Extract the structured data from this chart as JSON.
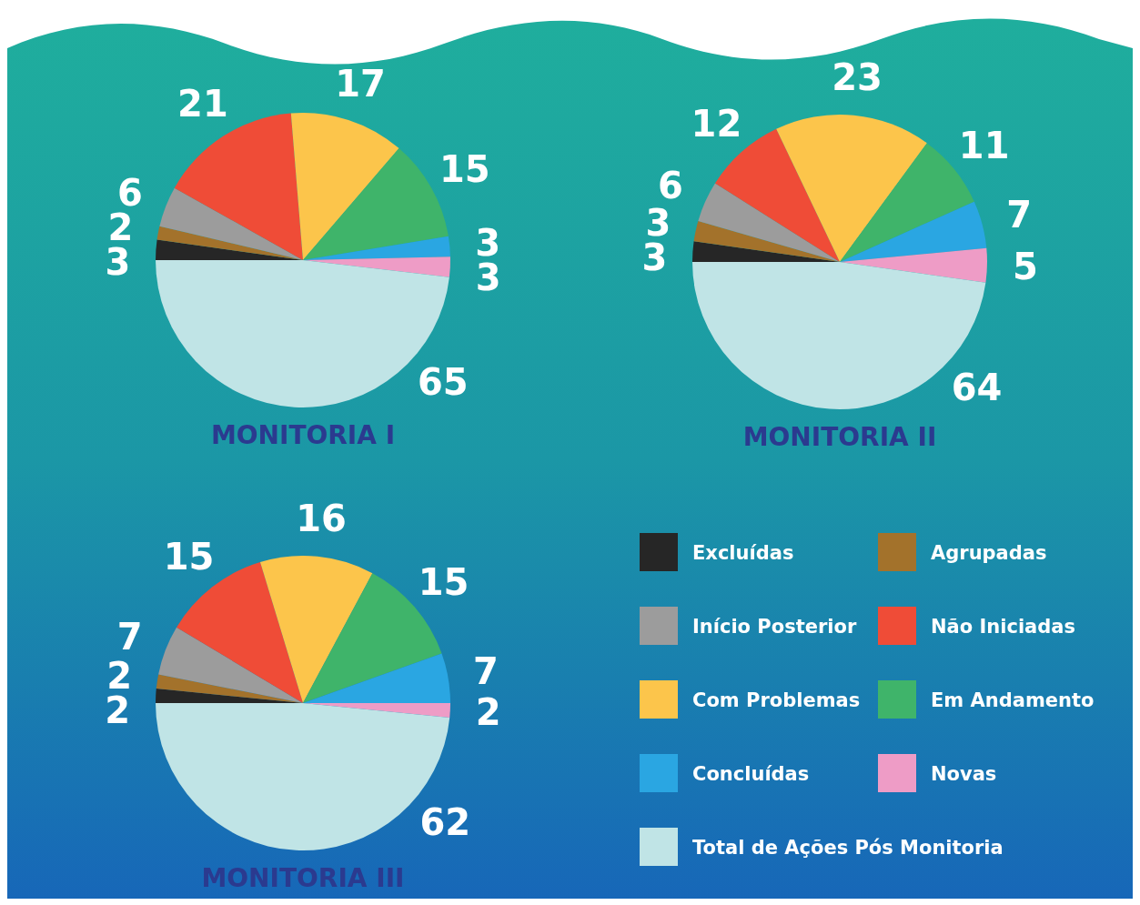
{
  "chart_data": [
    {
      "type": "pie",
      "title": "MONITORIA I",
      "categories": [
        null,
        null,
        null,
        null,
        null,
        null,
        null,
        null,
        null
      ],
      "values": [
        3,
        2,
        6,
        21,
        17,
        15,
        3,
        3,
        65
      ],
      "colors": [
        "#262626",
        "#a3722b",
        "#9c9c9c",
        "#ef4c37",
        "#fcc54b",
        "#3fb46a",
        "#2aa6e2",
        "#ee9cc6",
        "#c0e4e6"
      ],
      "data_labels": true
    },
    {
      "type": "pie",
      "title": "MONITORIA II",
      "categories": [
        null,
        null,
        null,
        null,
        null,
        null,
        null,
        null,
        null
      ],
      "values": [
        3,
        3,
        6,
        12,
        23,
        11,
        7,
        5,
        64
      ],
      "colors": [
        "#262626",
        "#a3722b",
        "#9c9c9c",
        "#ef4c37",
        "#fcc54b",
        "#3fb46a",
        "#2aa6e2",
        "#ee9cc6",
        "#c0e4e6"
      ],
      "data_labels": true
    },
    {
      "type": "pie",
      "title": "MONITORIA III",
      "categories": [
        "Excluídas",
        "Agrupadas",
        "Início Posterior",
        "Não Iniciadas",
        "Com Problemas",
        "Em Andamento",
        "Concluídas",
        "Novas",
        "Total de Ações Pós Monitoria"
      ],
      "values": [
        2,
        2,
        7,
        15,
        16,
        15,
        7,
        2,
        62
      ],
      "colors": [
        "#262626",
        "#a3722b",
        "#9c9c9c",
        "#ef4c37",
        "#fcc54b",
        "#3fb46a",
        "#2aa6e2",
        "#ee9cc6",
        "#c0e4e6"
      ],
      "data_labels": true,
      "legend": "right"
    }
  ]
}
